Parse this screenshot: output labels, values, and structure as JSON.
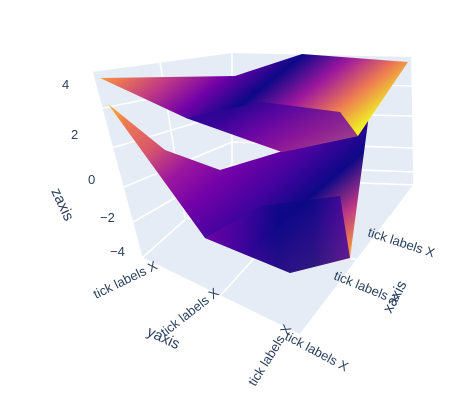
{
  "chart_data": {
    "type": "surface3d",
    "colorscale": [
      "#0d0887",
      "#46039f",
      "#7201a8",
      "#9c179e",
      "#bd3786",
      "#d8576b",
      "#ed7953",
      "#fb9f3a",
      "#fdca26",
      "#f0f921"
    ],
    "scene": {
      "background": "#e5ecf6",
      "gridcolor": "#ffffff",
      "xaxis": {
        "title": "xaxis",
        "ticktext": [
          "tick labels X",
          "tick labels X",
          "tick labels X"
        ]
      },
      "yaxis": {
        "title": "yaxis",
        "ticktext": [
          "tick labels X",
          "tick labels X",
          "tick labels X"
        ]
      },
      "zaxis": {
        "title": "zaxis",
        "tickvals": [
          4,
          2,
          0,
          -2,
          -4
        ],
        "ticktext": [
          "4",
          "2",
          "0",
          "−2",
          "−4"
        ],
        "range": [
          -4.5,
          4.5
        ]
      }
    },
    "series": [
      {
        "x": [
          0,
          1,
          2
        ],
        "y": [
          0,
          1,
          2
        ],
        "z": [
          [
            3.8,
            3.2,
            4.2
          ],
          [
            3.4,
            1.8,
            2.6
          ],
          [
            4.0,
            3.0,
            4.4
          ]
        ]
      },
      {
        "x": [
          0,
          1,
          2
        ],
        "y": [
          0,
          1,
          2
        ],
        "z": [
          [
            2.6,
            -1.0,
            -3.2
          ],
          [
            0.8,
            -2.2,
            -4.0
          ],
          [
            2.2,
            -0.6,
            3.4
          ]
        ]
      }
    ]
  }
}
